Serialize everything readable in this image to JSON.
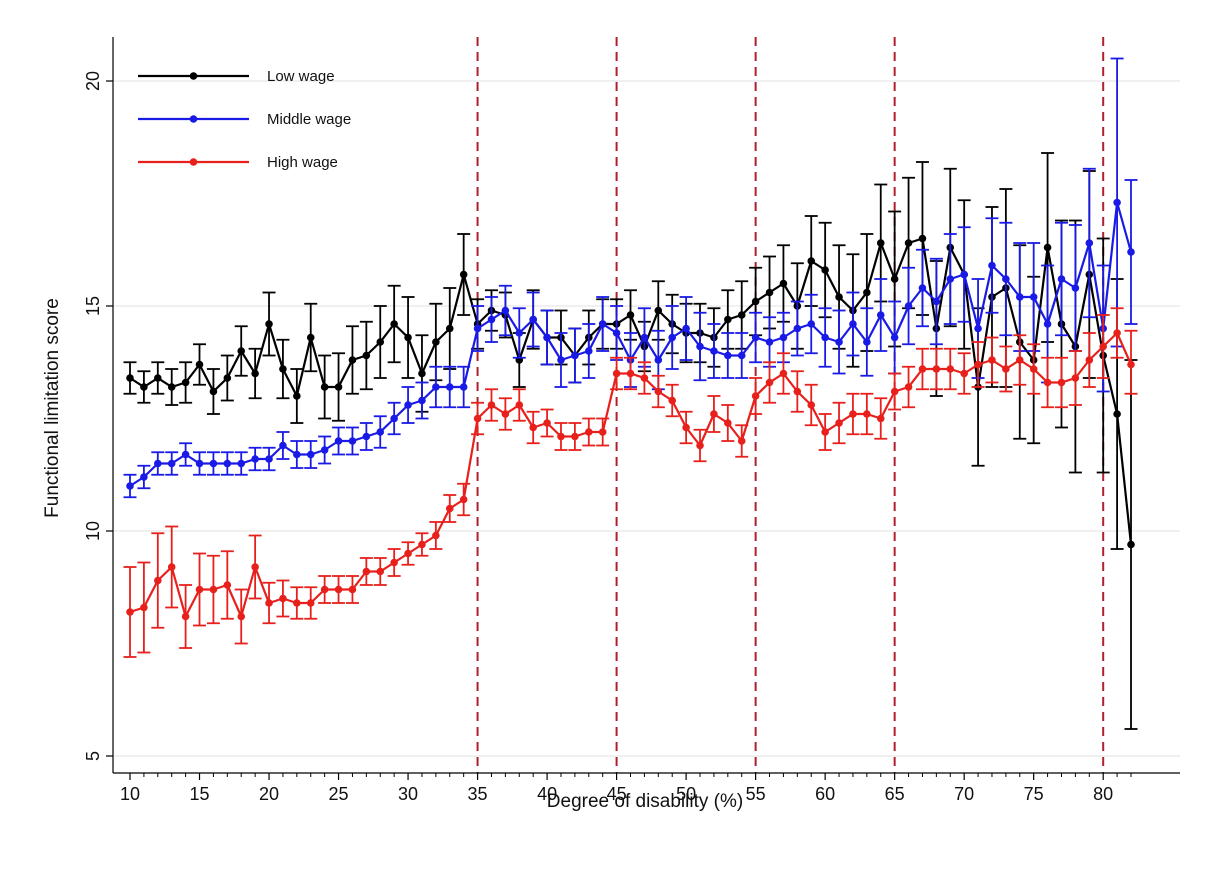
{
  "chart_data": {
    "type": "line",
    "xlabel": "Degree of disability (%)",
    "ylabel": "Functional limitation score",
    "xlim": [
      9,
      83
    ],
    "ylim": [
      4.5,
      21
    ],
    "xticks": [
      10,
      15,
      20,
      25,
      30,
      35,
      40,
      45,
      50,
      55,
      60,
      65,
      70,
      75,
      80
    ],
    "yticks": [
      5,
      10,
      15,
      20
    ],
    "grid": "horizontal",
    "legend_position": "top-left",
    "vlines": [
      35,
      45,
      55,
      65,
      80
    ],
    "vline_color": "#b01e2f",
    "x": [
      10,
      11,
      12,
      13,
      14,
      15,
      16,
      17,
      18,
      19,
      20,
      21,
      22,
      23,
      24,
      25,
      26,
      27,
      28,
      29,
      30,
      31,
      32,
      33,
      34,
      35,
      36,
      37,
      38,
      39,
      40,
      41,
      42,
      43,
      44,
      45,
      46,
      47,
      48,
      49,
      50,
      51,
      52,
      53,
      54,
      55,
      56,
      57,
      58,
      59,
      60,
      61,
      62,
      63,
      64,
      65,
      66,
      67,
      68,
      69,
      70,
      71,
      72,
      73,
      74,
      75,
      76,
      77,
      78,
      79,
      80,
      81,
      82
    ],
    "series": [
      {
        "name": "Low wage",
        "color": "#000000",
        "values": [
          13.4,
          13.2,
          13.4,
          13.2,
          13.3,
          13.7,
          13.1,
          13.4,
          14.0,
          13.5,
          14.6,
          13.6,
          13.0,
          14.3,
          13.2,
          13.2,
          13.8,
          13.9,
          14.2,
          14.6,
          14.3,
          13.5,
          14.2,
          14.5,
          15.7,
          14.6,
          14.9,
          14.8,
          13.8,
          14.7,
          14.3,
          14.3,
          13.9,
          14.3,
          14.6,
          14.6,
          14.8,
          14.1,
          14.9,
          14.6,
          14.4,
          14.4,
          14.3,
          14.7,
          14.8,
          15.1,
          15.3,
          15.5,
          15.0,
          16.0,
          15.8,
          15.2,
          14.9,
          15.3,
          16.4,
          15.6,
          16.4,
          16.5,
          14.5,
          16.3,
          15.7,
          13.2,
          15.2,
          15.4,
          14.2,
          13.8,
          16.3,
          14.6,
          14.1,
          15.7,
          13.9,
          12.6,
          9.7
        ],
        "ci_lower": [
          13.05,
          12.85,
          13.05,
          12.8,
          12.85,
          13.25,
          12.6,
          12.9,
          13.45,
          12.95,
          13.9,
          12.95,
          12.4,
          13.55,
          12.5,
          12.45,
          13.05,
          13.15,
          13.4,
          13.75,
          13.4,
          12.65,
          13.35,
          13.6,
          14.8,
          14.05,
          14.45,
          14.3,
          13.2,
          14.05,
          13.7,
          13.7,
          13.3,
          13.7,
          14.05,
          14.05,
          14.25,
          13.55,
          14.25,
          13.95,
          13.75,
          13.75,
          13.65,
          14.05,
          14.05,
          14.35,
          14.5,
          14.65,
          14.05,
          15.0,
          14.75,
          14.05,
          13.65,
          14.0,
          15.1,
          14.1,
          14.95,
          14.8,
          13.0,
          14.55,
          14.05,
          11.45,
          13.2,
          13.2,
          12.05,
          11.95,
          14.2,
          12.3,
          11.3,
          13.4,
          11.3,
          9.6,
          5.6
        ],
        "ci_upper": [
          13.75,
          13.55,
          13.75,
          13.6,
          13.75,
          14.15,
          13.6,
          13.9,
          14.55,
          14.05,
          15.3,
          14.25,
          13.6,
          15.05,
          13.9,
          13.95,
          14.55,
          14.65,
          15.0,
          15.45,
          15.2,
          14.35,
          15.05,
          15.4,
          16.6,
          15.15,
          15.35,
          15.3,
          14.4,
          15.35,
          14.9,
          14.9,
          14.5,
          14.9,
          15.15,
          15.15,
          15.35,
          14.65,
          15.55,
          15.25,
          15.05,
          15.05,
          14.95,
          15.35,
          15.55,
          15.85,
          16.1,
          16.35,
          15.95,
          17.0,
          16.85,
          16.35,
          16.15,
          16.6,
          17.7,
          17.1,
          17.85,
          18.2,
          16.0,
          18.05,
          17.35,
          14.95,
          17.2,
          17.6,
          16.35,
          15.65,
          18.4,
          16.9,
          16.9,
          18.0,
          16.5,
          15.6,
          13.8
        ]
      },
      {
        "name": "Middle wage",
        "color": "#1a1ae6",
        "values": [
          11.0,
          11.2,
          11.5,
          11.5,
          11.7,
          11.5,
          11.5,
          11.5,
          11.5,
          11.6,
          11.6,
          11.9,
          11.7,
          11.7,
          11.8,
          12.0,
          12.0,
          12.1,
          12.2,
          12.5,
          12.8,
          12.9,
          13.2,
          13.2,
          13.2,
          14.5,
          14.7,
          14.9,
          14.4,
          14.7,
          14.3,
          13.8,
          13.9,
          14.0,
          14.6,
          14.4,
          13.8,
          14.3,
          13.8,
          14.3,
          14.5,
          14.1,
          14.0,
          13.9,
          13.9,
          14.3,
          14.2,
          14.3,
          14.5,
          14.6,
          14.3,
          14.2,
          14.6,
          14.2,
          14.8,
          14.3,
          15.0,
          15.4,
          15.1,
          15.6,
          15.7,
          14.5,
          15.9,
          15.6,
          15.2,
          15.2,
          14.6,
          15.6,
          15.4,
          16.4,
          14.5,
          17.3,
          16.2
        ],
        "ci_lower": [
          10.75,
          10.95,
          11.25,
          11.25,
          11.45,
          11.25,
          11.25,
          11.25,
          11.25,
          11.35,
          11.35,
          11.6,
          11.4,
          11.4,
          11.5,
          11.7,
          11.7,
          11.8,
          11.85,
          12.15,
          12.4,
          12.5,
          12.75,
          12.75,
          12.75,
          14.0,
          14.2,
          14.35,
          13.85,
          14.1,
          13.7,
          13.2,
          13.3,
          13.4,
          14.0,
          13.8,
          13.2,
          13.65,
          13.15,
          13.6,
          13.8,
          13.35,
          13.4,
          13.4,
          13.4,
          13.75,
          13.65,
          13.75,
          13.9,
          13.95,
          13.65,
          13.5,
          13.9,
          13.45,
          14.0,
          13.5,
          14.15,
          14.55,
          14.15,
          14.6,
          14.65,
          13.4,
          14.85,
          14.35,
          14.0,
          14.0,
          13.3,
          14.35,
          14.0,
          14.75,
          13.1,
          14.1,
          14.6
        ],
        "ci_upper": [
          11.25,
          11.45,
          11.75,
          11.75,
          11.95,
          11.75,
          11.75,
          11.75,
          11.75,
          11.85,
          11.85,
          12.2,
          12.0,
          12.0,
          12.1,
          12.3,
          12.3,
          12.4,
          12.55,
          12.85,
          13.2,
          13.3,
          13.65,
          13.65,
          13.65,
          15.0,
          15.2,
          15.45,
          14.95,
          15.3,
          14.9,
          14.4,
          14.5,
          14.6,
          15.2,
          15.0,
          14.4,
          14.95,
          14.45,
          15.0,
          15.2,
          14.85,
          14.6,
          14.4,
          14.4,
          14.85,
          14.75,
          14.85,
          15.1,
          15.25,
          14.95,
          14.9,
          15.3,
          14.95,
          15.6,
          15.1,
          15.85,
          16.25,
          16.05,
          16.6,
          16.75,
          15.6,
          16.95,
          16.85,
          16.4,
          16.4,
          15.9,
          16.85,
          16.8,
          18.05,
          15.9,
          20.5,
          17.8
        ]
      },
      {
        "name": "High wage",
        "color": "#e8201c",
        "values": [
          8.2,
          8.3,
          8.9,
          9.2,
          8.1,
          8.7,
          8.7,
          8.8,
          8.1,
          9.2,
          8.4,
          8.5,
          8.4,
          8.4,
          8.7,
          8.7,
          8.7,
          9.1,
          9.1,
          9.3,
          9.5,
          9.7,
          9.9,
          10.5,
          10.7,
          12.5,
          12.8,
          12.6,
          12.8,
          12.3,
          12.4,
          12.1,
          12.1,
          12.2,
          12.2,
          13.5,
          13.5,
          13.4,
          13.1,
          12.9,
          12.3,
          11.9,
          12.6,
          12.4,
          12.0,
          13.0,
          13.3,
          13.5,
          13.1,
          12.8,
          12.2,
          12.4,
          12.6,
          12.6,
          12.5,
          13.1,
          13.2,
          13.6,
          13.6,
          13.6,
          13.5,
          13.7,
          13.8,
          13.6,
          13.8,
          13.6,
          13.3,
          13.3,
          13.4,
          13.8,
          14.1,
          14.4,
          13.7
        ],
        "ci_lower": [
          7.2,
          7.3,
          7.85,
          8.3,
          7.4,
          7.9,
          7.95,
          8.05,
          7.5,
          8.5,
          7.95,
          8.1,
          8.05,
          8.05,
          8.4,
          8.4,
          8.4,
          8.8,
          8.8,
          9.0,
          9.25,
          9.45,
          9.6,
          10.2,
          10.35,
          12.15,
          12.45,
          12.25,
          12.45,
          11.95,
          12.1,
          11.8,
          11.8,
          11.9,
          11.9,
          13.15,
          13.15,
          13.05,
          12.75,
          12.55,
          11.95,
          11.55,
          12.2,
          12.0,
          11.65,
          12.6,
          12.85,
          13.05,
          12.65,
          12.35,
          11.8,
          11.95,
          12.15,
          12.15,
          12.05,
          12.7,
          12.75,
          13.15,
          13.15,
          13.15,
          13.05,
          13.2,
          13.3,
          13.1,
          13.25,
          13.05,
          12.75,
          12.75,
          12.8,
          13.2,
          13.4,
          13.85,
          13.05
        ],
        "ci_upper": [
          9.2,
          9.3,
          9.95,
          10.1,
          8.8,
          9.5,
          9.45,
          9.55,
          8.7,
          9.9,
          8.85,
          8.9,
          8.75,
          8.75,
          9.0,
          9.0,
          9.0,
          9.4,
          9.4,
          9.6,
          9.75,
          9.95,
          10.2,
          10.8,
          11.05,
          12.85,
          13.15,
          12.95,
          13.15,
          12.65,
          12.7,
          12.4,
          12.4,
          12.5,
          12.5,
          13.85,
          13.85,
          13.75,
          13.45,
          13.25,
          12.65,
          12.25,
          13.0,
          12.8,
          12.35,
          13.4,
          13.75,
          13.95,
          13.55,
          13.25,
          12.6,
          12.85,
          13.05,
          13.05,
          12.95,
          13.5,
          13.65,
          14.05,
          14.05,
          14.05,
          13.95,
          14.2,
          14.3,
          14.1,
          14.35,
          14.15,
          13.85,
          13.85,
          14.0,
          14.4,
          14.8,
          14.95,
          14.45
        ]
      }
    ]
  }
}
